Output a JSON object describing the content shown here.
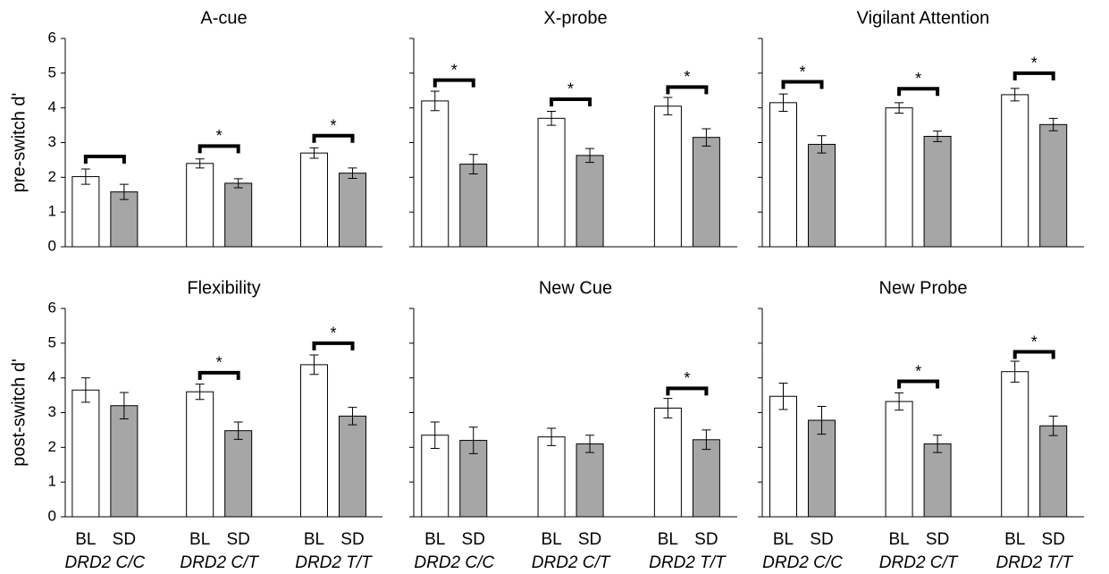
{
  "chart_data": [
    {
      "type": "bar",
      "title": "A-cue",
      "ylabel": "pre-switch d'",
      "ylim": [
        0,
        6
      ],
      "yticks": [
        0,
        1,
        2,
        3,
        4,
        5,
        6
      ],
      "series": [
        {
          "color": "#ffffff",
          "values": [
            2.02,
            2.4,
            2.7
          ],
          "errors": [
            0.22,
            0.13,
            0.15
          ]
        },
        {
          "color": "#a6a6a6",
          "values": [
            1.58,
            1.83,
            2.12
          ],
          "errors": [
            0.22,
            0.13,
            0.15
          ]
        }
      ],
      "brackets": [
        2.6,
        2.9,
        3.2
      ],
      "stars": [
        null,
        "*",
        "*"
      ]
    },
    {
      "type": "bar",
      "title": "X-probe",
      "ylim": [
        0,
        6
      ],
      "yticks": [
        0,
        1,
        2,
        3,
        4,
        5,
        6
      ],
      "series": [
        {
          "color": "#ffffff",
          "values": [
            4.2,
            3.7,
            4.05
          ],
          "errors": [
            0.28,
            0.2,
            0.25
          ]
        },
        {
          "color": "#a6a6a6",
          "values": [
            2.38,
            2.63,
            3.15
          ],
          "errors": [
            0.28,
            0.2,
            0.25
          ]
        }
      ],
      "brackets": [
        4.8,
        4.25,
        4.6
      ],
      "stars": [
        "*",
        "*",
        "*"
      ]
    },
    {
      "type": "bar",
      "title": "Vigilant Attention",
      "ylim": [
        0,
        6
      ],
      "yticks": [
        0,
        1,
        2,
        3,
        4,
        5,
        6
      ],
      "series": [
        {
          "color": "#ffffff",
          "values": [
            4.15,
            4.0,
            4.38
          ],
          "errors": [
            0.25,
            0.15,
            0.18
          ]
        },
        {
          "color": "#a6a6a6",
          "values": [
            2.95,
            3.18,
            3.52
          ],
          "errors": [
            0.25,
            0.15,
            0.18
          ]
        }
      ],
      "brackets": [
        4.75,
        4.55,
        5.0
      ],
      "stars": [
        "*",
        "*",
        "*"
      ]
    },
    {
      "type": "bar",
      "title": "Flexibility",
      "ylabel": "post-switch d'",
      "ylim": [
        0,
        6
      ],
      "yticks": [
        0,
        1,
        2,
        3,
        4,
        5,
        6
      ],
      "categories": [
        "DRD2 C/C",
        "DRD2 C/T",
        "DRD2 T/T"
      ],
      "series": [
        {
          "name": "BL",
          "color": "#ffffff",
          "values": [
            3.65,
            3.6,
            4.38
          ],
          "errors": [
            0.35,
            0.22,
            0.28
          ]
        },
        {
          "name": "SD",
          "color": "#a6a6a6",
          "values": [
            3.2,
            2.48,
            2.9
          ],
          "errors": [
            0.38,
            0.25,
            0.25
          ]
        }
      ],
      "brackets": [
        null,
        4.15,
        5.0
      ],
      "stars": [
        null,
        "*",
        "*"
      ]
    },
    {
      "type": "bar",
      "title": "New Cue",
      "ylim": [
        0,
        6
      ],
      "yticks": [
        0,
        1,
        2,
        3,
        4,
        5,
        6
      ],
      "categories": [
        "DRD2 C/C",
        "DRD2 C/T",
        "DRD2 T/T"
      ],
      "series": [
        {
          "name": "BL",
          "color": "#ffffff",
          "values": [
            2.35,
            2.3,
            3.13
          ],
          "errors": [
            0.38,
            0.25,
            0.28
          ]
        },
        {
          "name": "SD",
          "color": "#a6a6a6",
          "values": [
            2.2,
            2.1,
            2.22
          ],
          "errors": [
            0.38,
            0.25,
            0.28
          ]
        }
      ],
      "brackets": [
        null,
        null,
        3.7
      ],
      "stars": [
        null,
        null,
        "*"
      ]
    },
    {
      "type": "bar",
      "title": "New Probe",
      "ylim": [
        0,
        6
      ],
      "yticks": [
        0,
        1,
        2,
        3,
        4,
        5,
        6
      ],
      "categories": [
        "DRD2 C/C",
        "DRD2 C/T",
        "DRD2 T/T"
      ],
      "series": [
        {
          "name": "BL",
          "color": "#ffffff",
          "values": [
            3.47,
            3.32,
            4.18
          ],
          "errors": [
            0.38,
            0.25,
            0.3
          ]
        },
        {
          "name": "SD",
          "color": "#a6a6a6",
          "values": [
            2.78,
            2.1,
            2.62
          ],
          "errors": [
            0.4,
            0.25,
            0.28
          ]
        }
      ],
      "brackets": [
        null,
        3.9,
        4.75
      ],
      "stars": [
        null,
        "*",
        "*"
      ]
    }
  ]
}
